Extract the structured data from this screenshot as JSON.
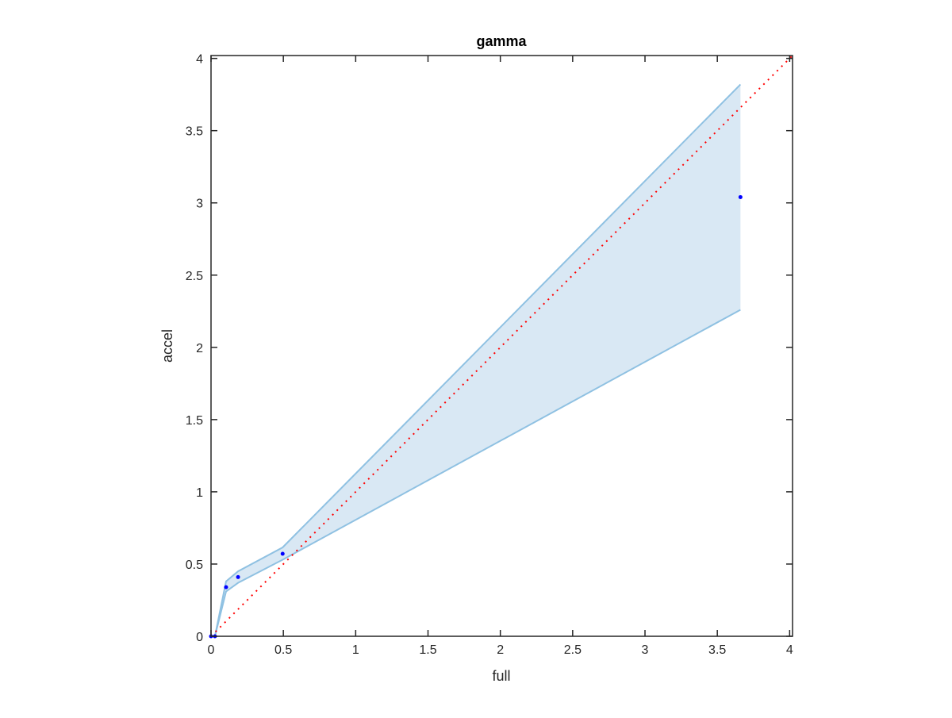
{
  "chart_data": {
    "type": "area",
    "title": "gamma",
    "xlabel": "full",
    "ylabel": "accel",
    "xlim": [
      0,
      4.02
    ],
    "ylim": [
      0,
      4.02
    ],
    "xticks": [
      0,
      0.5,
      1,
      1.5,
      2,
      2.5,
      3,
      3.5,
      4
    ],
    "yticks": [
      0,
      0.5,
      1,
      1.5,
      2,
      2.5,
      3,
      3.5,
      4
    ],
    "xtick_labels": [
      "0",
      "0.5",
      "1",
      "1.5",
      "2",
      "2.5",
      "3",
      "3.5",
      "4"
    ],
    "ytick_labels": [
      "0",
      "0.5",
      "1",
      "1.5",
      "2",
      "2.5",
      "3",
      "3.5",
      "4"
    ],
    "grid": false,
    "band": {
      "x": [
        0,
        0.027,
        0.104,
        0.187,
        0.495,
        3.66
      ],
      "upper": [
        0,
        0,
        0.38,
        0.45,
        0.615,
        3.82
      ],
      "lower": [
        0,
        0,
        0.31,
        0.37,
        0.53,
        2.26
      ],
      "fill_color": "#d9e8f4",
      "edge_color": "#8fc1e2"
    },
    "points": {
      "x": [
        0,
        0.027,
        0.104,
        0.187,
        0.495,
        3.66
      ],
      "y": [
        0,
        0,
        0.34,
        0.41,
        0.571,
        3.04
      ],
      "color": "#0000ff"
    },
    "reference_line": {
      "x": [
        0,
        4.02
      ],
      "y": [
        0,
        4.02
      ],
      "style": "dotted",
      "color": "#ff0000"
    }
  }
}
